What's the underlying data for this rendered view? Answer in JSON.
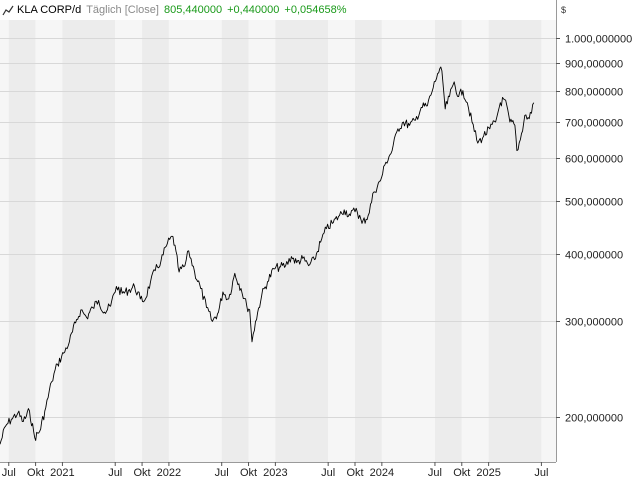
{
  "header": {
    "title": "KLA CORP/d",
    "mode": "Täglich [Close]",
    "last": "805,440000",
    "change": "+0,440000",
    "change_pct": "+0,054658%",
    "currency": "$"
  },
  "colors": {
    "line": "#000000",
    "band_a": "#f6f6f6",
    "band_b": "#ececec",
    "grid": "#d8d8d8",
    "positive": "#1a9a1a"
  },
  "chart_data": {
    "type": "line",
    "title": "KLA CORP/d",
    "y_scale": "log",
    "ylim": [
      165,
      1080
    ],
    "xlim": [
      "2020-06-01",
      "2025-08-20"
    ],
    "y_ticks": [
      {
        "value": 200,
        "label": "200,000000"
      },
      {
        "value": 300,
        "label": "300,000000"
      },
      {
        "value": 400,
        "label": "400,000000"
      },
      {
        "value": 500,
        "label": "500,000000"
      },
      {
        "value": 600,
        "label": "600,000000"
      },
      {
        "value": 700,
        "label": "700,000000"
      },
      {
        "value": 800,
        "label": "800,000000"
      },
      {
        "value": 900,
        "label": "900,000000"
      },
      {
        "value": 1000,
        "label": "1.000,000000"
      }
    ],
    "x_ticks": [
      {
        "date": "2020-07-01",
        "label": "Jul"
      },
      {
        "date": "2020-10-01",
        "label": "Okt"
      },
      {
        "date": "2021-01-01",
        "label": "2021"
      },
      {
        "date": "2021-07-01",
        "label": "Jul"
      },
      {
        "date": "2021-10-01",
        "label": "Okt"
      },
      {
        "date": "2022-01-01",
        "label": "2022"
      },
      {
        "date": "2022-07-01",
        "label": "Jul"
      },
      {
        "date": "2022-10-01",
        "label": "Okt"
      },
      {
        "date": "2023-01-01",
        "label": "2023"
      },
      {
        "date": "2023-07-01",
        "label": "Jul"
      },
      {
        "date": "2023-10-01",
        "label": "Okt"
      },
      {
        "date": "2024-01-01",
        "label": "2024"
      },
      {
        "date": "2024-07-01",
        "label": "Jul"
      },
      {
        "date": "2024-10-01",
        "label": "Okt"
      },
      {
        "date": "2025-01-01",
        "label": "2025"
      },
      {
        "date": "2025-07-01",
        "label": "Jul"
      }
    ],
    "series": [
      {
        "x": [
          "2020-06-01",
          "2020-06-20",
          "2020-07-10",
          "2020-08-01",
          "2020-08-20",
          "2020-09-10",
          "2020-09-28",
          "2020-10-15",
          "2020-11-05",
          "2020-11-25",
          "2020-12-15",
          "2021-01-05",
          "2021-01-25",
          "2021-02-15",
          "2021-03-05",
          "2021-03-25",
          "2021-04-15",
          "2021-05-05",
          "2021-05-25",
          "2021-06-15",
          "2021-07-05",
          "2021-07-25",
          "2021-08-15",
          "2021-09-05",
          "2021-09-25",
          "2021-10-10",
          "2021-10-30",
          "2021-11-15",
          "2021-12-05",
          "2021-12-27",
          "2022-01-15",
          "2022-02-05",
          "2022-02-25",
          "2022-03-10",
          "2022-03-30",
          "2022-04-20",
          "2022-05-10",
          "2022-05-30",
          "2022-06-20",
          "2022-07-05",
          "2022-07-25",
          "2022-08-15",
          "2022-09-05",
          "2022-09-25",
          "2022-10-05",
          "2022-10-13",
          "2022-10-25",
          "2022-11-15",
          "2022-12-05",
          "2022-12-27",
          "2023-01-15",
          "2023-02-05",
          "2023-02-25",
          "2023-03-15",
          "2023-04-05",
          "2023-04-25",
          "2023-05-15",
          "2023-06-05",
          "2023-06-25",
          "2023-07-15",
          "2023-08-05",
          "2023-08-25",
          "2023-09-15",
          "2023-10-05",
          "2023-10-25",
          "2023-11-15",
          "2023-12-05",
          "2023-12-27",
          "2024-01-15",
          "2024-02-05",
          "2024-02-25",
          "2024-03-15",
          "2024-04-05",
          "2024-04-25",
          "2024-05-15",
          "2024-06-05",
          "2024-06-25",
          "2024-07-10",
          "2024-07-25",
          "2024-08-05",
          "2024-08-20",
          "2024-09-05",
          "2024-09-20",
          "2024-10-05",
          "2024-10-20",
          "2024-11-05",
          "2024-11-25",
          "2024-12-15",
          "2025-01-05",
          "2025-01-25",
          "2025-02-10",
          "2025-02-25",
          "2025-03-15",
          "2025-04-01",
          "2025-04-08",
          "2025-04-20",
          "2025-05-05",
          "2025-05-20",
          "2025-06-05"
        ],
        "y": [
          178,
          192,
          198,
          203,
          196,
          205,
          183,
          188,
          208,
          232,
          250,
          262,
          275,
          298,
          315,
          305,
          318,
          328,
          312,
          320,
          348,
          338,
          342,
          348,
          330,
          328,
          355,
          372,
          388,
          418,
          430,
          370,
          380,
          405,
          370,
          345,
          318,
          300,
          312,
          340,
          330,
          368,
          345,
          320,
          315,
          275,
          300,
          335,
          355,
          375,
          378,
          380,
          395,
          385,
          392,
          380,
          390,
          420,
          445,
          455,
          468,
          482,
          470,
          485,
          455,
          470,
          520,
          545,
          590,
          620,
          680,
          700,
          690,
          705,
          745,
          750,
          810,
          860,
          870,
          740,
          780,
          830,
          780,
          800,
          760,
          700,
          640,
          660,
          680,
          700,
          760,
          770,
          700,
          690,
          620,
          650,
          720,
          710,
          760
        ]
      }
    ]
  }
}
